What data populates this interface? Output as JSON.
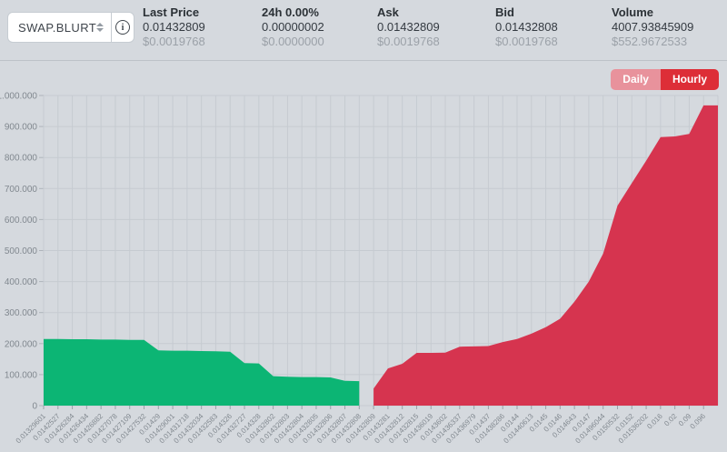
{
  "pair_selector": {
    "selected": "SWAP.BLURT"
  },
  "stats": [
    {
      "label": "Last Price",
      "value": "0.01432809",
      "usd": "$0.0019768"
    },
    {
      "label": "24h 0.00%",
      "value": "0.00000002",
      "usd": "$0.0000000"
    },
    {
      "label": "Ask",
      "value": "0.01432809",
      "usd": "$0.0019768"
    },
    {
      "label": "Bid",
      "value": "0.01432808",
      "usd": "$0.0019768"
    },
    {
      "label": "Volume",
      "value": "4007.93845909",
      "usd": "$552.9672533"
    }
  ],
  "toolbar": {
    "daily_label": "Daily",
    "hourly_label": "Hourly",
    "active": "Hourly"
  },
  "colors": {
    "background": "#d5d9de",
    "grid": "#c6cbd1",
    "axis_text": "#81888f",
    "buy": "#0cb574",
    "sell": "#d6344f",
    "button_active": "#dd2e37",
    "button_inactive": "#e8929c",
    "text_primary": "#2b3136",
    "text_muted": "#9ba1a8",
    "panel_border": "#c6ccd2",
    "divider": "#bdc2c8",
    "white": "#ffffff"
  },
  "chart_data": {
    "type": "area",
    "title": "",
    "xlabel": "",
    "ylabel": "",
    "ylim": [
      0,
      1000000
    ],
    "y_tick_step": 100000,
    "grid": true,
    "legend": "none",
    "x_labels": [
      "0.01329601",
      "0.0142527",
      "0.01426284",
      "0.01426434",
      "0.01426882",
      "0.01427078",
      "0.01427109",
      "0.01427532",
      "0.01429",
      "0.01429001",
      "0.01431718",
      "0.01432034",
      "0.01432583",
      "0.014326",
      "0.01432727",
      "0.014328",
      "0.01432802",
      "0.01432803",
      "0.01432804",
      "0.01432805",
      "0.01432806",
      "0.01432807",
      "0.01432808",
      "0.01432809",
      "0.0143281",
      "0.01432812",
      "0.01432815",
      "0.01436019",
      "0.0143602",
      "0.01436337",
      "0.01436979",
      "0.01437",
      "0.01438286",
      "0.0144",
      "0.01440613",
      "0.0145",
      "0.0146",
      "0.014643",
      "0.0147",
      "0.01496044",
      "0.0150532",
      "0.0152",
      "0.01536202",
      "0.016",
      "0.02",
      "0.09",
      "0.096"
    ],
    "series": [
      {
        "name": "buy-depth",
        "color": "#0cb574",
        "start_index": 0,
        "extend_right": false,
        "values": [
          215000,
          215000,
          214000,
          214000,
          213000,
          213000,
          212000,
          212000,
          178000,
          177000,
          177000,
          176000,
          175000,
          174000,
          137000,
          136000,
          95000,
          93000,
          92000,
          92000,
          91000,
          80000,
          79000
        ]
      },
      {
        "name": "sell-depth",
        "color": "#d6344f",
        "start_index": 23,
        "extend_right": true,
        "values": [
          55000,
          120000,
          135000,
          170000,
          170000,
          171000,
          190000,
          191000,
          192000,
          205000,
          215000,
          232000,
          253000,
          280000,
          335000,
          400000,
          490000,
          645000,
          718000,
          790000,
          866000,
          868000,
          876000,
          968000
        ]
      }
    ]
  }
}
